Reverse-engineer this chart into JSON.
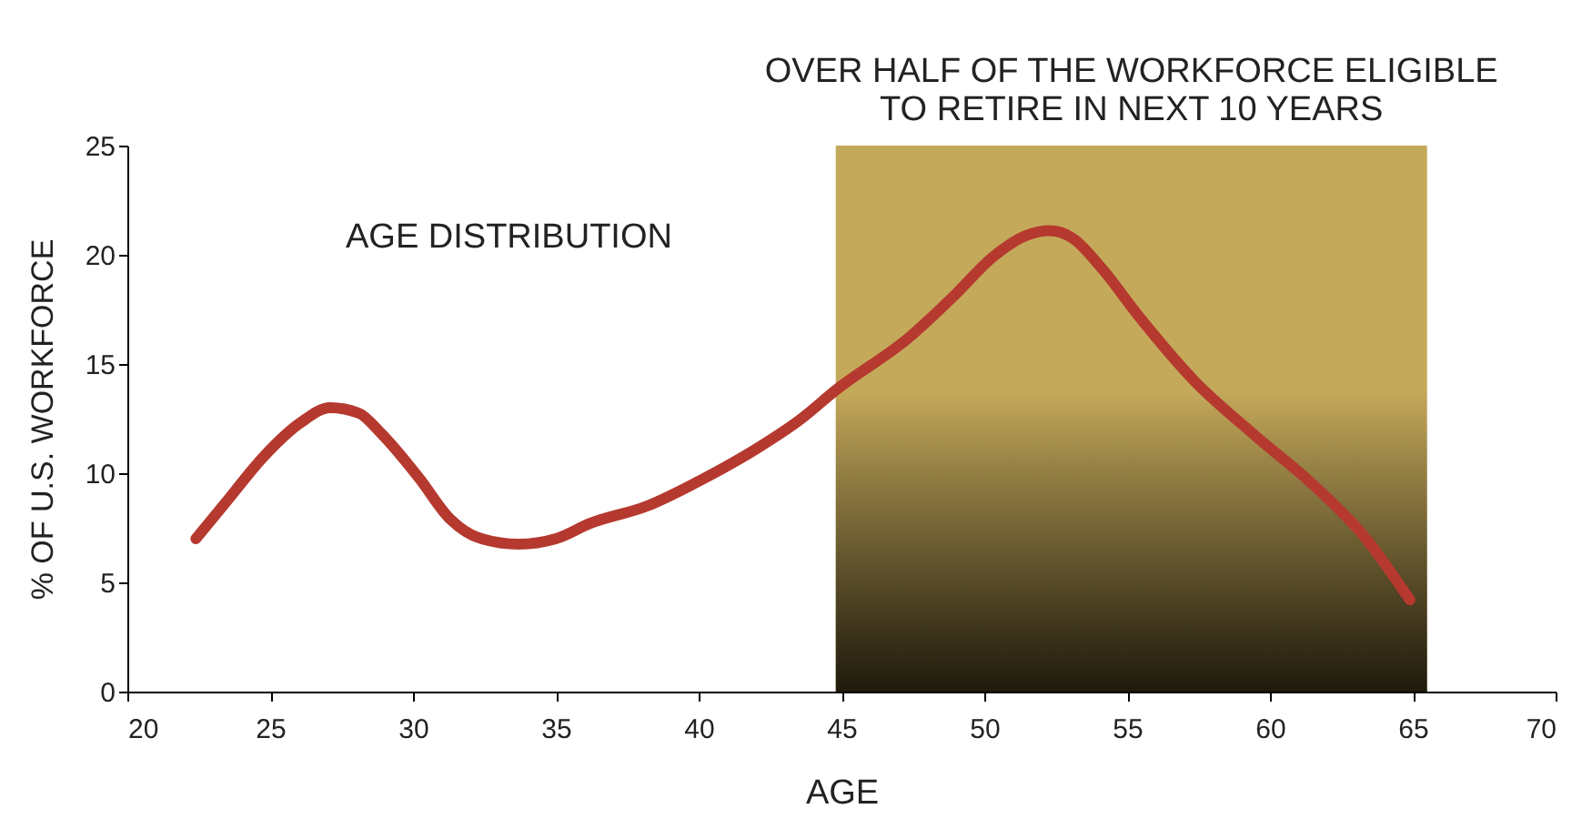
{
  "chart_data": {
    "type": "line",
    "xlabel": "AGE",
    "ylabel": "% OF U.S. WORKFORCE",
    "annotations": [
      "AGE DISTRIBUTION"
    ],
    "bands": [
      {
        "axis": "x",
        "from": 44.8,
        "to": 65.5,
        "label": "OVER HALF OF THE WORKFORCE ELIGIBLE\nTO RETIRE IN NEXT 10 YEARS",
        "color": "#c5a95a"
      }
    ],
    "x": [
      22.4,
      23.5,
      24.8,
      26.05,
      27.1,
      28.1,
      28.9,
      30.2,
      31.3,
      32.4,
      33.7,
      35.0,
      36.2,
      38.2,
      40.1,
      42.0,
      43.6,
      44.8,
      47.4,
      49.0,
      50.3,
      51.5,
      52.3,
      53.1,
      54.1,
      55.4,
      57.3,
      59.5,
      61.4,
      63.3,
      64.9
    ],
    "series": [
      {
        "color": "#b5392f",
        "values": [
          7.0,
          8.75,
          10.8,
          12.3,
          13.0,
          12.75,
          11.8,
          9.8,
          7.9,
          7.0,
          6.75,
          7.0,
          7.7,
          8.5,
          9.7,
          11.1,
          12.5,
          13.8,
          16.25,
          18.2,
          19.9,
          20.9,
          21.1,
          20.75,
          19.4,
          17.2,
          14.3,
          11.7,
          9.6,
          7.1,
          4.2
        ]
      }
    ],
    "xlim": [
      20,
      70
    ],
    "xticks": [
      20,
      25,
      30,
      35,
      40,
      45,
      50,
      55,
      60,
      65,
      70
    ],
    "ylim": [
      0,
      25
    ],
    "yticks": [
      0,
      5,
      10,
      15,
      20,
      25
    ],
    "grid": false,
    "legend": false,
    "line_style": "solid",
    "marker": "none"
  }
}
